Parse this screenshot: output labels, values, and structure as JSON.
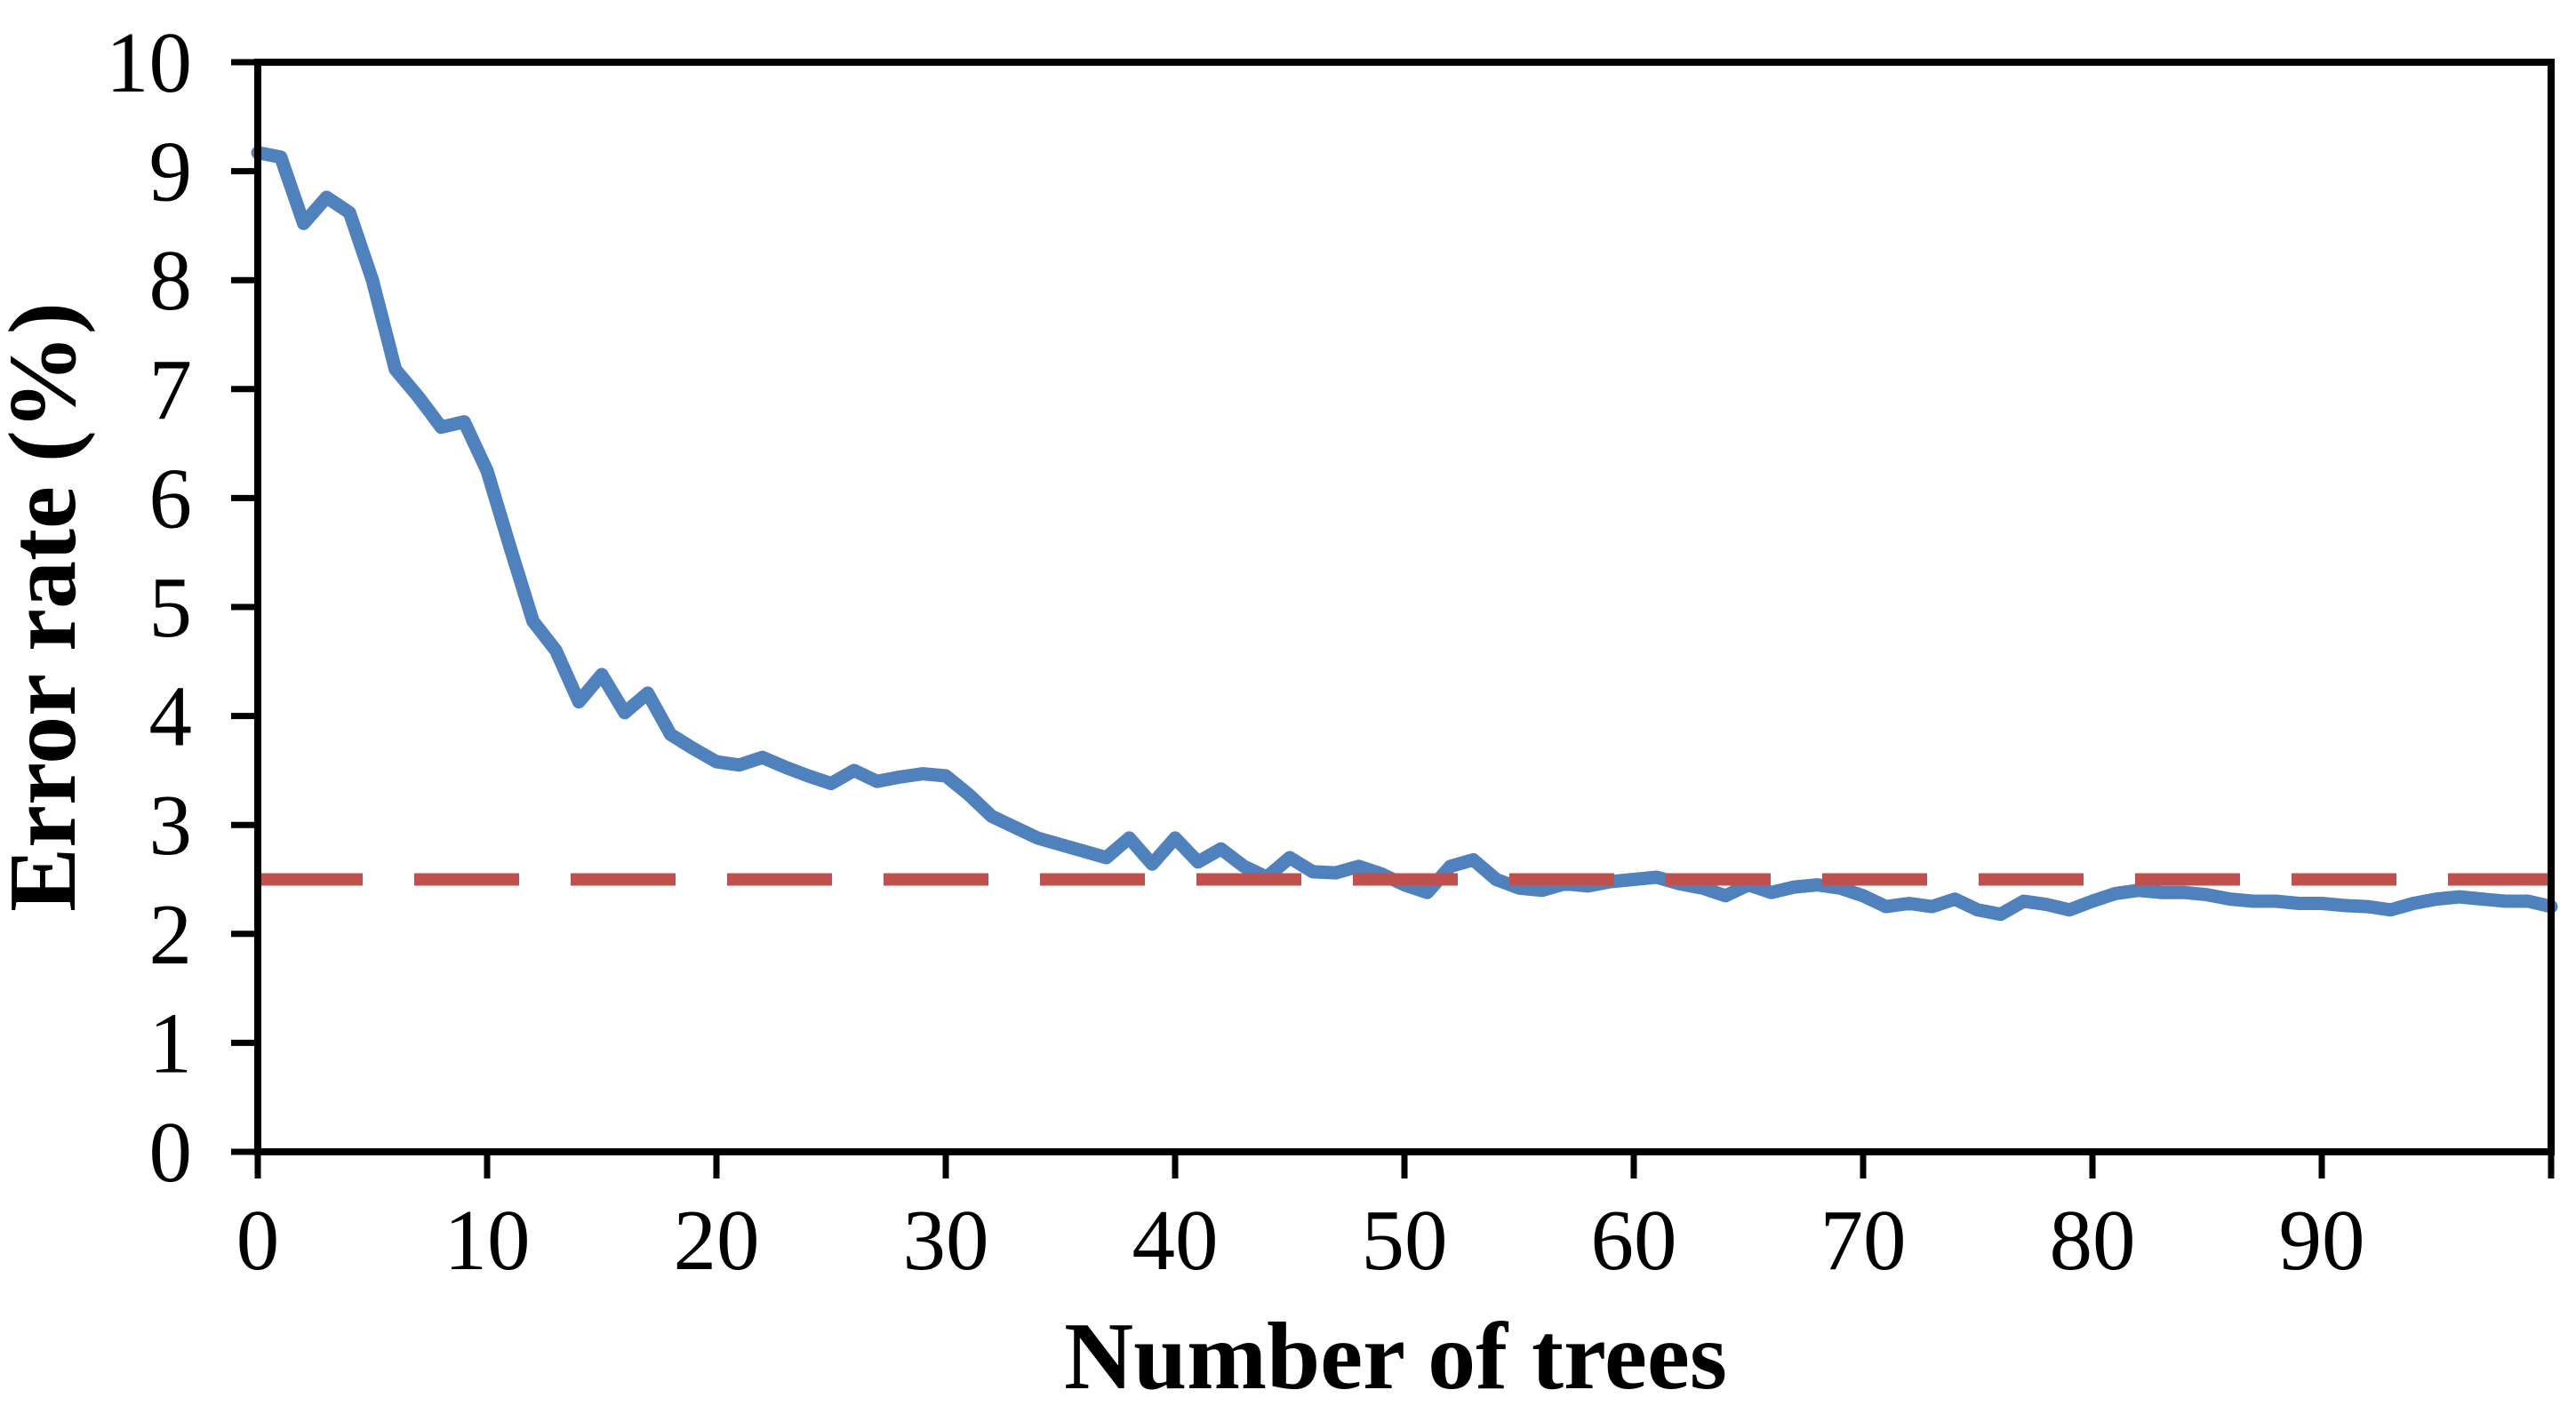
{
  "figure": {
    "title": "",
    "x_axis_title": "Number of trees",
    "y_axis_title": "Error rate (%)"
  },
  "colors": {
    "background": "#FFFFFF",
    "axis": "#000000",
    "text": "#000000",
    "error_rate_line": "#4F81BD",
    "reference_line": "#C0504D"
  },
  "chart_data": {
    "type": "line",
    "title": "",
    "xlabel": "Number of trees",
    "ylabel": "Error rate (%)",
    "xlim": [
      0,
      100
    ],
    "ylim": [
      0,
      10
    ],
    "x_ticks": [
      0,
      10,
      20,
      30,
      40,
      50,
      60,
      70,
      80,
      90,
      100
    ],
    "x_tick_labels": [
      "0",
      "10",
      "20",
      "30",
      "40",
      "50",
      "60",
      "70",
      "80",
      "90",
      ""
    ],
    "y_ticks": [
      0,
      1,
      2,
      3,
      4,
      5,
      6,
      7,
      8,
      9,
      10
    ],
    "y_tick_labels": [
      "0",
      "1",
      "2",
      "3",
      "4",
      "5",
      "6",
      "7",
      "8",
      "9",
      "10"
    ],
    "grid": false,
    "legend_position": "none",
    "series": [
      {
        "name": "error-rate-curve",
        "type": "line",
        "color": "#4F81BD",
        "line_style": "solid",
        "line_width": 15,
        "x": [
          0,
          1,
          2,
          3,
          4,
          5,
          6,
          7,
          8,
          9,
          10,
          11,
          12,
          13,
          14,
          15,
          16,
          17,
          18,
          19,
          20,
          21,
          22,
          23,
          24,
          25,
          26,
          27,
          28,
          29,
          30,
          31,
          32,
          33,
          34,
          35,
          36,
          37,
          38,
          39,
          40,
          41,
          42,
          43,
          44,
          45,
          46,
          47,
          48,
          49,
          50,
          51,
          52,
          53,
          54,
          55,
          56,
          57,
          58,
          59,
          60,
          61,
          62,
          63,
          64,
          65,
          66,
          67,
          68,
          69,
          70,
          71,
          72,
          73,
          74,
          75,
          76,
          77,
          78,
          79,
          80,
          81,
          82,
          83,
          84,
          85,
          86,
          87,
          88,
          89,
          90,
          91,
          92,
          93,
          94,
          95,
          96,
          97,
          98,
          99,
          100
        ],
        "values": [
          9.17,
          9.13,
          8.52,
          8.76,
          8.62,
          8.0,
          7.18,
          6.93,
          6.65,
          6.7,
          6.25,
          5.55,
          4.87,
          4.6,
          4.13,
          4.38,
          4.03,
          4.21,
          3.83,
          3.7,
          3.58,
          3.55,
          3.62,
          3.53,
          3.45,
          3.38,
          3.5,
          3.4,
          3.44,
          3.47,
          3.45,
          3.28,
          3.08,
          2.98,
          2.88,
          2.82,
          2.76,
          2.7,
          2.88,
          2.64,
          2.88,
          2.66,
          2.78,
          2.62,
          2.52,
          2.7,
          2.57,
          2.56,
          2.62,
          2.55,
          2.45,
          2.38,
          2.62,
          2.68,
          2.5,
          2.42,
          2.4,
          2.46,
          2.44,
          2.48,
          2.5,
          2.52,
          2.46,
          2.42,
          2.35,
          2.45,
          2.38,
          2.43,
          2.45,
          2.42,
          2.35,
          2.25,
          2.28,
          2.25,
          2.32,
          2.22,
          2.18,
          2.3,
          2.27,
          2.22,
          2.3,
          2.37,
          2.4,
          2.38,
          2.38,
          2.36,
          2.32,
          2.3,
          2.3,
          2.28,
          2.28,
          2.26,
          2.25,
          2.22,
          2.28,
          2.32,
          2.34,
          2.32,
          2.3,
          2.3,
          2.25
        ]
      },
      {
        "name": "reference-line",
        "type": "hline",
        "color": "#C0504D",
        "line_style": "dashed",
        "line_width": 14,
        "value": 2.5
      }
    ]
  }
}
